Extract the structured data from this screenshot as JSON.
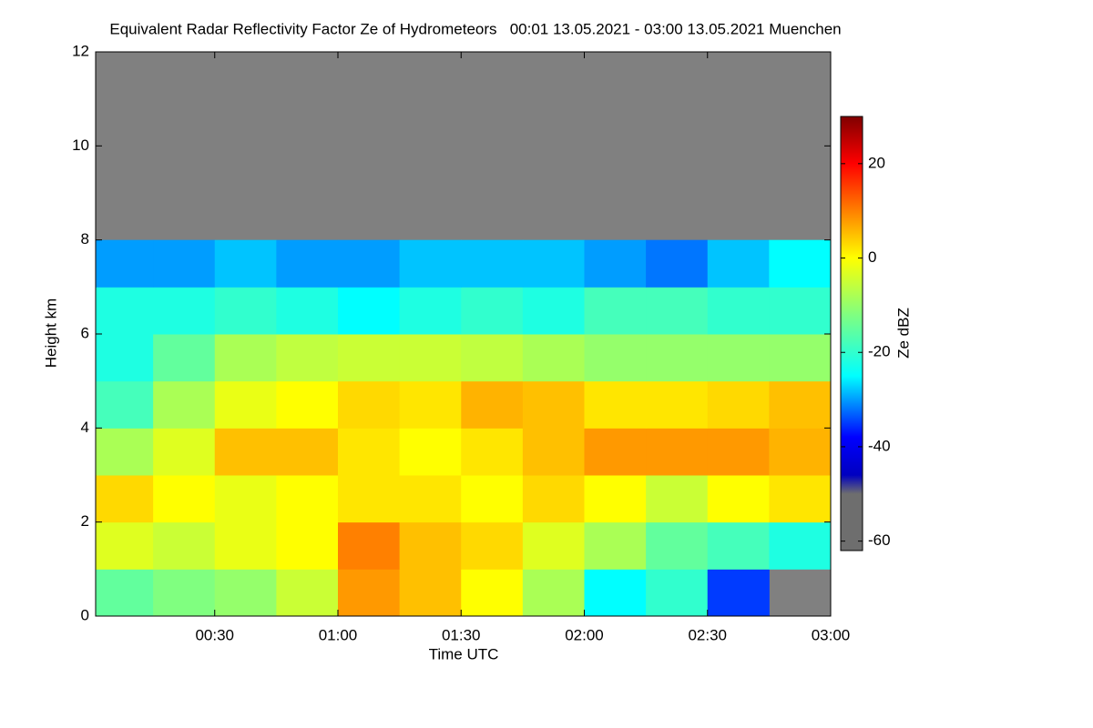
{
  "chart_data": {
    "type": "heatmap",
    "title": "Equivalent Radar Reflectivity Factor Ze of Hydrometeors   00:01 13.05.2021 - 03:00 13.05.2021 Muenchen",
    "x_label": "Time UTC",
    "y_label": "Height km",
    "colorbar_label": "Ze dBZ",
    "xlim": [
      1,
      180
    ],
    "xticks": [
      {
        "value": 30,
        "label": "00:30"
      },
      {
        "value": 60,
        "label": "01:00"
      },
      {
        "value": 90,
        "label": "01:30"
      },
      {
        "value": 120,
        "label": "02:00"
      },
      {
        "value": 150,
        "label": "02:30"
      },
      {
        "value": 180,
        "label": "03:00"
      }
    ],
    "ylim": [
      0,
      12
    ],
    "yticks": [
      0,
      2,
      4,
      6,
      8,
      10,
      12
    ],
    "clim": [
      -62,
      30
    ],
    "cticks": [
      -60,
      -40,
      -20,
      0,
      20
    ],
    "no_data_color": "#808080",
    "colormap": [
      {
        "value": -62,
        "color": "#6e6e6e"
      },
      {
        "value": -50,
        "color": "#6e6e6e"
      },
      {
        "value": -46,
        "color": "#0000c0"
      },
      {
        "value": -38,
        "color": "#0000ff"
      },
      {
        "value": -25,
        "color": "#00ffff"
      },
      {
        "value": -12,
        "color": "#80ff80"
      },
      {
        "value": 0,
        "color": "#ffff00"
      },
      {
        "value": 10,
        "color": "#ff8000"
      },
      {
        "value": 20,
        "color": "#ff0000"
      },
      {
        "value": 30,
        "color": "#800000"
      }
    ],
    "x_bins": [
      1,
      15,
      30,
      45,
      60,
      75,
      90,
      105,
      120,
      135,
      150,
      165,
      180
    ],
    "y_bins": [
      0,
      1,
      2,
      3,
      4,
      5,
      6,
      7,
      8,
      9,
      10,
      11,
      12
    ],
    "z": [
      [
        -15,
        -12,
        -10,
        -5,
        8,
        5,
        0,
        -8,
        -25,
        -20,
        -35,
        null
      ],
      [
        -3,
        -5,
        -2,
        0,
        10,
        5,
        3,
        -3,
        -8,
        -15,
        -18,
        -22
      ],
      [
        3,
        0,
        -2,
        0,
        2,
        2,
        0,
        3,
        0,
        -5,
        0,
        2
      ],
      [
        -8,
        -3,
        5,
        5,
        2,
        0,
        2,
        5,
        8,
        8,
        8,
        6
      ],
      [
        -18,
        -8,
        -2,
        0,
        3,
        2,
        6,
        5,
        2,
        2,
        3,
        5
      ],
      [
        -22,
        -15,
        -8,
        -6,
        -5,
        -5,
        -6,
        -8,
        -10,
        -10,
        -10,
        -10
      ],
      [
        -22,
        -22,
        -20,
        -22,
        -25,
        -22,
        -20,
        -22,
        -18,
        -18,
        -20,
        -20
      ],
      [
        -30,
        -30,
        -28,
        -30,
        -30,
        -28,
        -28,
        -28,
        -30,
        -32,
        -28,
        -25
      ],
      [
        null,
        null,
        null,
        null,
        null,
        null,
        null,
        null,
        null,
        null,
        null,
        null
      ],
      [
        null,
        null,
        null,
        null,
        null,
        null,
        null,
        null,
        null,
        null,
        null,
        null
      ],
      [
        null,
        null,
        null,
        null,
        null,
        null,
        null,
        null,
        null,
        null,
        null,
        null
      ],
      [
        null,
        null,
        null,
        null,
        null,
        null,
        null,
        null,
        null,
        null,
        null,
        null
      ]
    ]
  }
}
